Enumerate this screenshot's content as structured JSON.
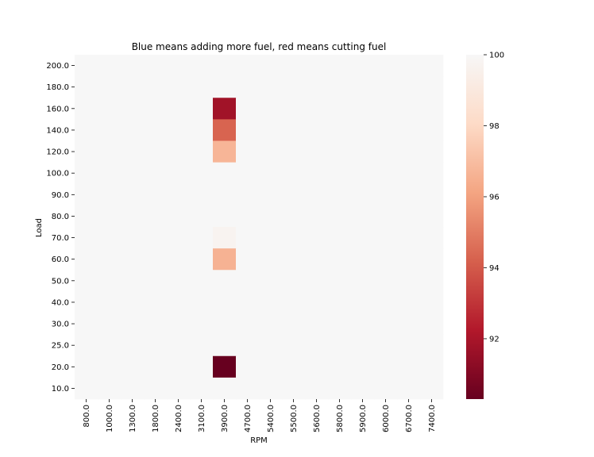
{
  "chart_data": {
    "type": "heatmap",
    "title": "Blue means adding more fuel, red means cutting fuel",
    "xlabel": "RPM",
    "ylabel": "Load",
    "x_categories": [
      "800.0",
      "1000.0",
      "1300.0",
      "1800.0",
      "2400.0",
      "3100.0",
      "3900.0",
      "4700.0",
      "5400.0",
      "5500.0",
      "5600.0",
      "5800.0",
      "5900.0",
      "6000.0",
      "6700.0",
      "7400.0"
    ],
    "y_categories": [
      "200.0",
      "180.0",
      "160.0",
      "140.0",
      "120.0",
      "100.0",
      "90.0",
      "80.0",
      "70.0",
      "60.0",
      "50.0",
      "40.0",
      "30.0",
      "25.0",
      "20.0",
      "10.0"
    ],
    "default_value": 100,
    "cells": [
      {
        "x": "3900.0",
        "y": "160.0",
        "value": 91.8
      },
      {
        "x": "3900.0",
        "y": "140.0",
        "value": 94.3
      },
      {
        "x": "3900.0",
        "y": "120.0",
        "value": 96.7
      },
      {
        "x": "3900.0",
        "y": "70.0",
        "value": 99.7
      },
      {
        "x": "3900.0",
        "y": "60.0",
        "value": 96.6
      },
      {
        "x": "3900.0",
        "y": "20.0",
        "value": 90.3
      }
    ],
    "colorbar": {
      "vmin": 90.3,
      "vmax": 100,
      "ticks": [
        92,
        94,
        96,
        98,
        100
      ],
      "colormap": "RdBu",
      "colors": [
        "#67001f",
        "#b2182b",
        "#d6604d",
        "#f4a582",
        "#fddbc7",
        "#f7f7f7"
      ]
    },
    "grid": false,
    "legend": "colorbar-right"
  }
}
